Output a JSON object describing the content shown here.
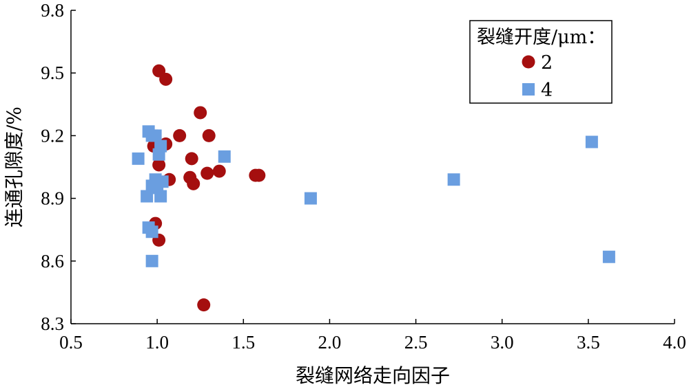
{
  "chart_data": {
    "type": "scatter",
    "xlabel": "裂缝网络走向因子",
    "ylabel": "连通孔隙度/%",
    "xlim": [
      0.5,
      4.0
    ],
    "ylim": [
      8.3,
      9.8
    ],
    "xticks": [
      "0.5",
      "1.0",
      "1.5",
      "2.0",
      "2.5",
      "3.0",
      "3.5",
      "4.0"
    ],
    "yticks": [
      "8.3",
      "8.6",
      "8.9",
      "9.2",
      "9.5",
      "9.8"
    ],
    "grid": false,
    "legend": {
      "title": "裂缝开度/μm：",
      "placement": "top-right"
    },
    "series": [
      {
        "name": "2",
        "marker": "circle",
        "color": "#a50f0f",
        "points": [
          [
            1.01,
            9.51
          ],
          [
            1.05,
            9.47
          ],
          [
            1.25,
            9.31
          ],
          [
            1.13,
            9.2
          ],
          [
            1.3,
            9.2
          ],
          [
            1.05,
            9.16
          ],
          [
            0.98,
            9.15
          ],
          [
            1.2,
            9.09
          ],
          [
            1.01,
            9.06
          ],
          [
            1.29,
            9.02
          ],
          [
            1.36,
            9.03
          ],
          [
            1.57,
            9.01
          ],
          [
            1.59,
            9.01
          ],
          [
            1.19,
            9.0
          ],
          [
            1.07,
            8.99
          ],
          [
            1.21,
            8.97
          ],
          [
            0.99,
            8.78
          ],
          [
            1.01,
            8.7
          ],
          [
            1.27,
            8.39
          ]
        ]
      },
      {
        "name": "4",
        "marker": "square",
        "color": "#6a9ee0",
        "points": [
          [
            0.95,
            9.22
          ],
          [
            0.97,
            9.2
          ],
          [
            0.99,
            9.2
          ],
          [
            1.02,
            9.15
          ],
          [
            1.01,
            9.11
          ],
          [
            0.89,
            9.09
          ],
          [
            1.39,
            9.1
          ],
          [
            0.99,
            8.99
          ],
          [
            1.03,
            8.98
          ],
          [
            0.97,
            8.96
          ],
          [
            1.0,
            8.95
          ],
          [
            0.94,
            8.91
          ],
          [
            1.02,
            8.91
          ],
          [
            0.95,
            8.76
          ],
          [
            0.97,
            8.74
          ],
          [
            0.97,
            8.6
          ],
          [
            1.89,
            8.9
          ],
          [
            2.72,
            8.99
          ],
          [
            3.52,
            9.17
          ],
          [
            3.62,
            8.62
          ]
        ]
      }
    ]
  }
}
